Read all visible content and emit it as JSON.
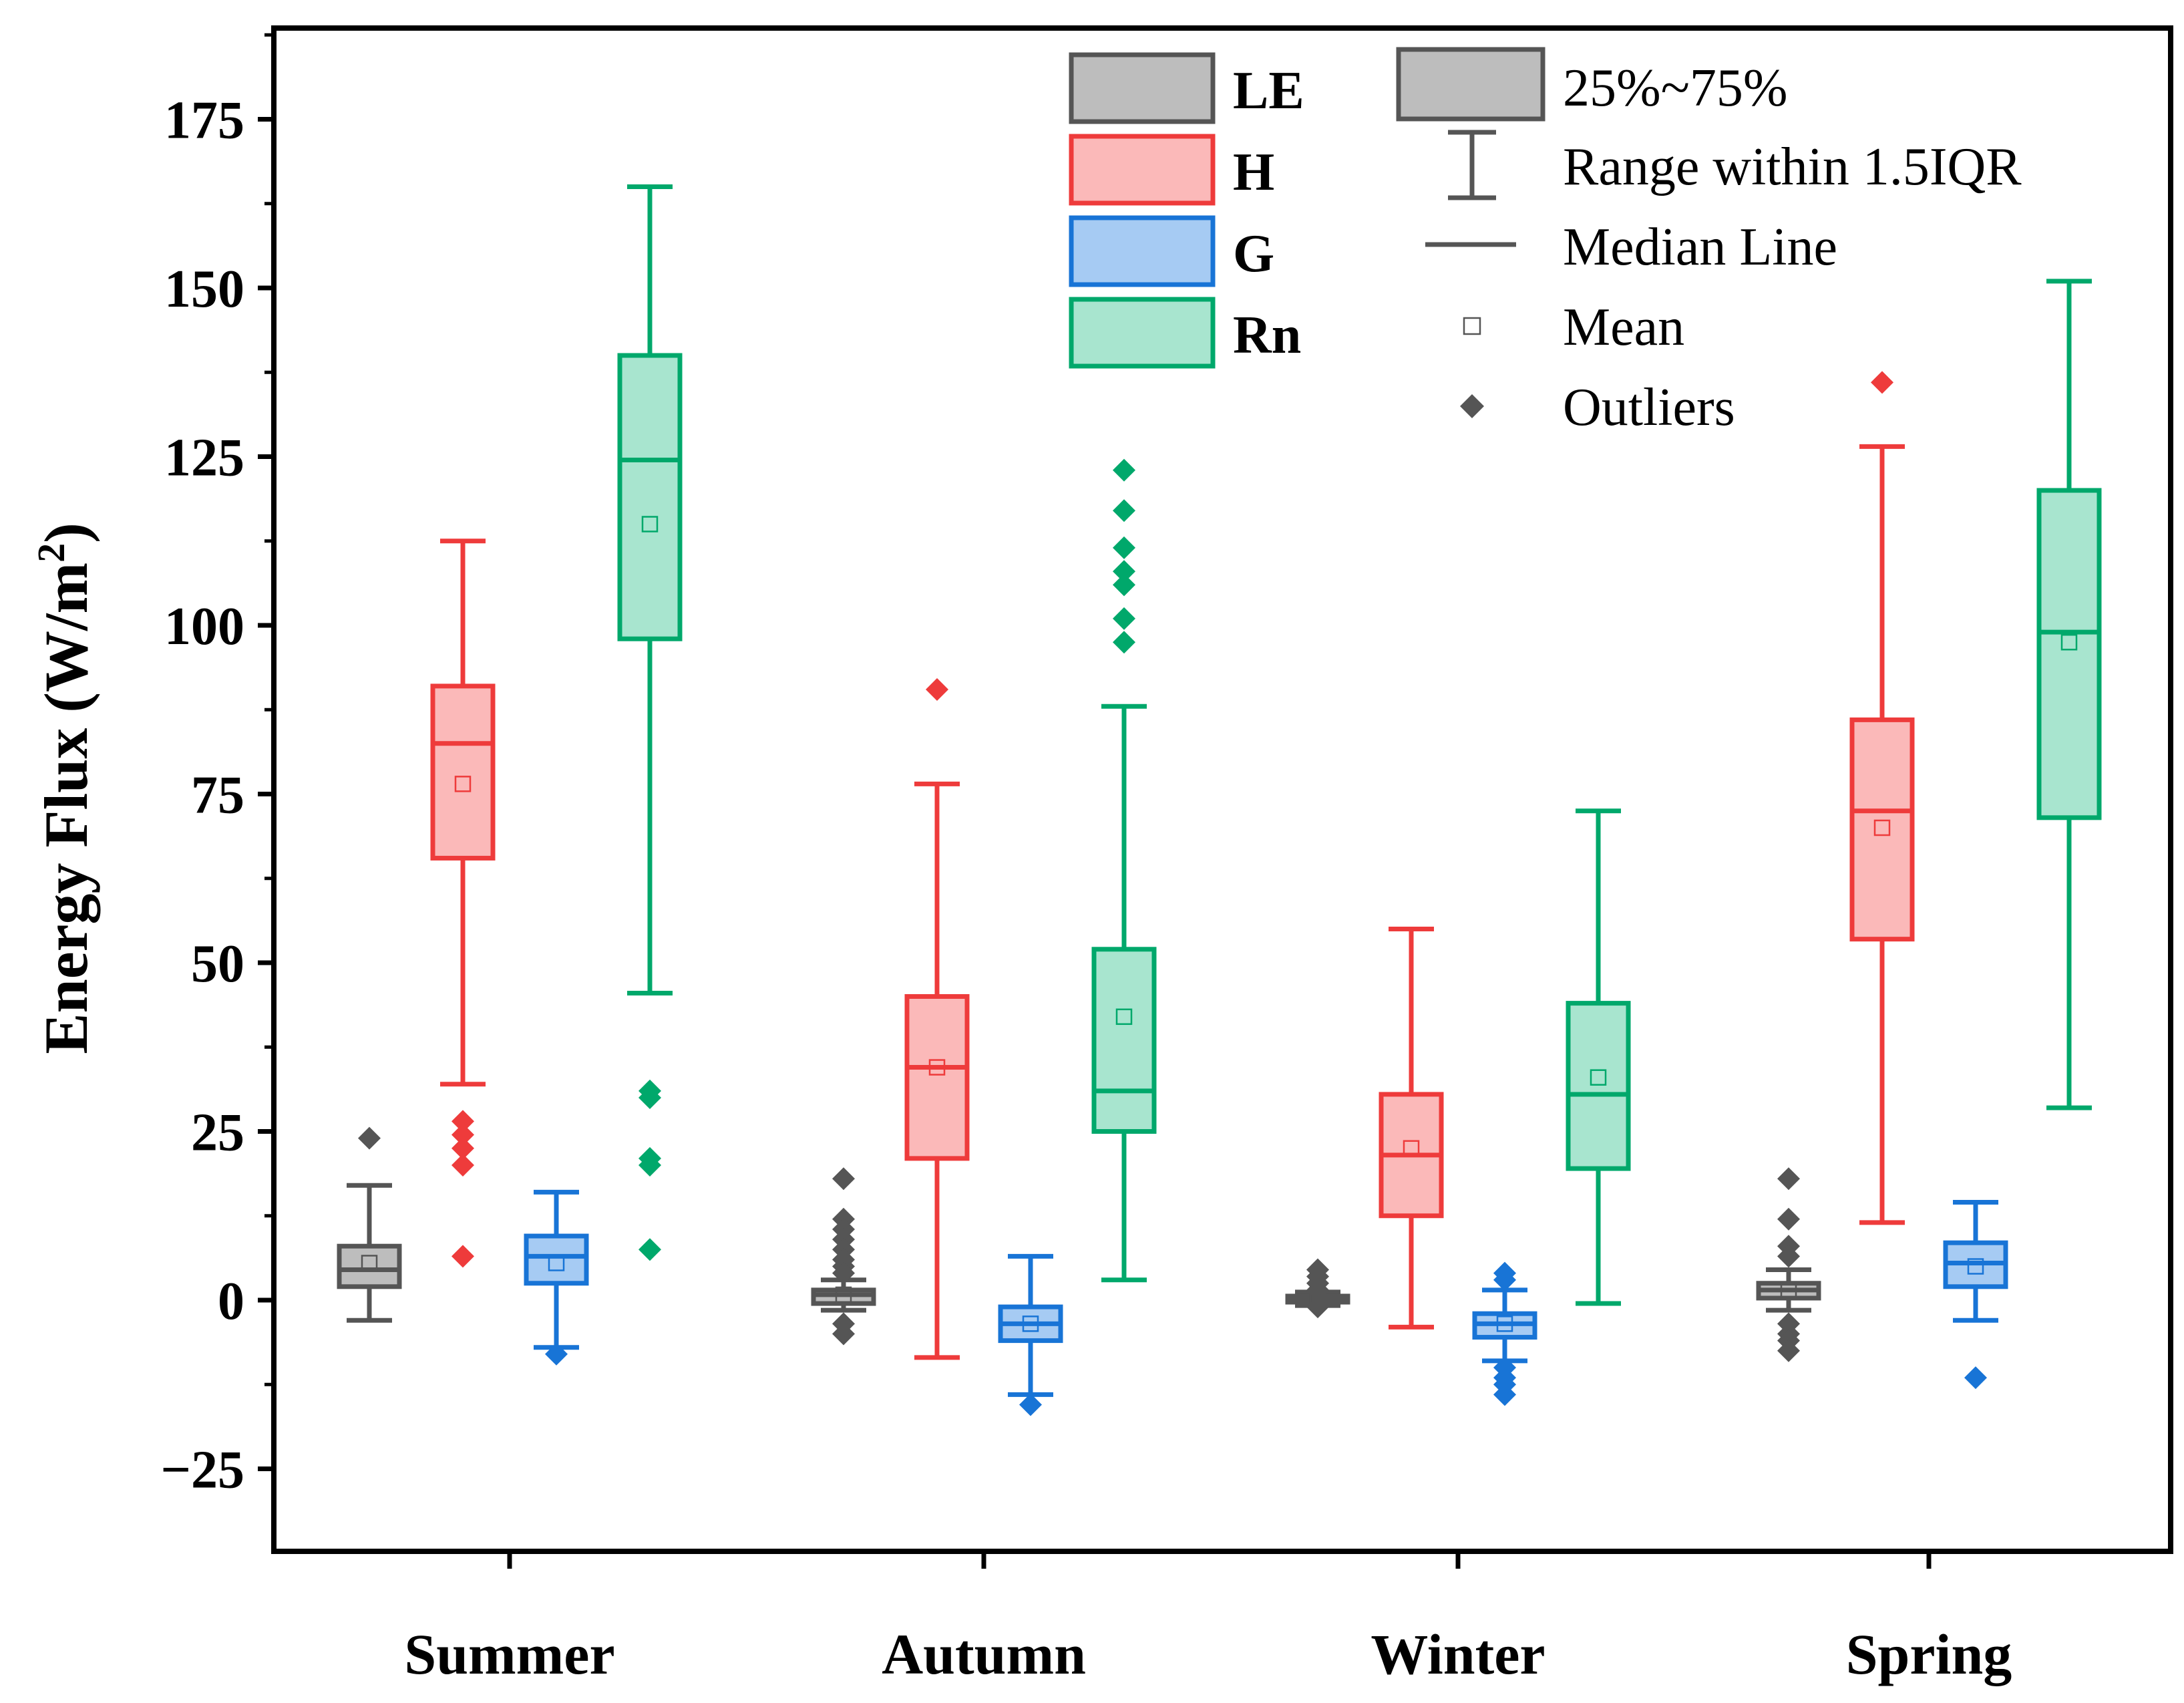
{
  "chart_data": {
    "type": "box",
    "title": "",
    "xlabel": "",
    "ylabel": "Energy Flux (W/m",
    "ylabel_superscript": "2",
    "ylabel_close": ")",
    "ylim": [
      -38,
      188
    ],
    "yticks": [
      -25,
      0,
      25,
      50,
      75,
      100,
      125,
      150,
      175
    ],
    "ytick_labels": [
      "−25",
      "0",
      "25",
      "50",
      "75",
      "100",
      "125",
      "150",
      "175"
    ],
    "categories": [
      "Summer",
      "Autumn",
      "Winter",
      "Spring"
    ],
    "series": [
      {
        "name": "LE",
        "color": "#555555",
        "fill": "#bdbdbd",
        "boxes": [
          {
            "q1": 2,
            "median": 4.5,
            "q3": 8,
            "whisker_low": -3,
            "whisker_high": 17,
            "mean": 5.5,
            "outliers": [
              24
            ]
          },
          {
            "q1": -0.5,
            "median": 0.8,
            "q3": 1.5,
            "whisker_low": -1.5,
            "whisker_high": 3,
            "mean": 0.8,
            "outliers": [
              18,
              12,
              10.5,
              9,
              7.5,
              6,
              5,
              4,
              -3.5,
              -5
            ]
          },
          {
            "q1": -0.3,
            "median": 0.2,
            "q3": 0.6,
            "whisker_low": -0.8,
            "whisker_high": 1.2,
            "mean": 0.2,
            "outliers": [
              4.5,
              3.5,
              2.5,
              1.5,
              -1
            ]
          },
          {
            "q1": 0.3,
            "median": 1.5,
            "q3": 2.5,
            "whisker_low": -1.5,
            "whisker_high": 4.5,
            "mean": 1.5,
            "outliers": [
              18,
              12,
              8,
              6.5,
              -3.5,
              -5,
              -6,
              -7.5
            ]
          }
        ]
      },
      {
        "name": "H",
        "color": "#ee3b3b",
        "fill": "#fbb9b9",
        "boxes": [
          {
            "q1": 65.5,
            "median": 82.5,
            "q3": 91,
            "whisker_low": 32,
            "whisker_high": 112.5,
            "mean": 76.5,
            "outliers": [
              26.5,
              24.5,
              22.5,
              20,
              6.5
            ]
          },
          {
            "q1": 21,
            "median": 34.5,
            "q3": 45,
            "whisker_low": -8.5,
            "whisker_high": 76.5,
            "mean": 34.5,
            "outliers": [
              90.5
            ]
          },
          {
            "q1": 12.5,
            "median": 21.5,
            "q3": 30.5,
            "whisker_low": -4,
            "whisker_high": 55,
            "mean": 22.5,
            "outliers": []
          },
          {
            "q1": 53.5,
            "median": 72.5,
            "q3": 86,
            "whisker_low": 11.5,
            "whisker_high": 126.5,
            "mean": 70,
            "outliers": [
              136
            ]
          }
        ]
      },
      {
        "name": "G",
        "color": "#1874d6",
        "fill": "#a6cbf3",
        "boxes": [
          {
            "q1": 2.5,
            "median": 6.5,
            "q3": 9.5,
            "whisker_low": -7,
            "whisker_high": 16,
            "mean": 5.5,
            "outliers": [
              -8
            ]
          },
          {
            "q1": -6,
            "median": -3.5,
            "q3": -1,
            "whisker_low": -14,
            "whisker_high": 6.5,
            "mean": -3.5,
            "outliers": [
              -15.5
            ]
          },
          {
            "q1": -5.5,
            "median": -3.5,
            "q3": -2,
            "whisker_low": -9,
            "whisker_high": 1.5,
            "mean": -3.5,
            "outliers": [
              4,
              3,
              -10,
              -11.5,
              -12.5,
              -14
            ]
          },
          {
            "q1": 2,
            "median": 5.5,
            "q3": 8.5,
            "whisker_low": -3,
            "whisker_high": 14.5,
            "mean": 5,
            "outliers": [
              -11.5
            ]
          }
        ]
      },
      {
        "name": "Rn",
        "color": "#00a86b",
        "fill": "#a8e5cf",
        "boxes": [
          {
            "q1": 98,
            "median": 124.5,
            "q3": 140,
            "whisker_low": 45.5,
            "whisker_high": 165,
            "mean": 115,
            "outliers": [
              31,
              30,
              21,
              20,
              7.5
            ]
          },
          {
            "q1": 25,
            "median": 31,
            "q3": 52,
            "whisker_low": 3,
            "whisker_high": 88,
            "mean": 42,
            "outliers": [
              123,
              117,
              111.5,
              108,
              106,
              101,
              97.5
            ]
          },
          {
            "q1": 19.5,
            "median": 30.5,
            "q3": 44,
            "whisker_low": -0.5,
            "whisker_high": 72.5,
            "mean": 33,
            "outliers": []
          },
          {
            "q1": 71.5,
            "median": 99,
            "q3": 120,
            "whisker_low": 28.5,
            "whisker_high": 151,
            "mean": 97.5,
            "outliers": []
          }
        ]
      }
    ],
    "legend": {
      "series_labels": [
        "LE",
        "H",
        "G",
        "Rn"
      ],
      "key_labels": [
        "25%~75%",
        "Range within 1.5IQR",
        "Median Line",
        "Mean",
        "Outliers"
      ],
      "placement": "top-right"
    }
  }
}
